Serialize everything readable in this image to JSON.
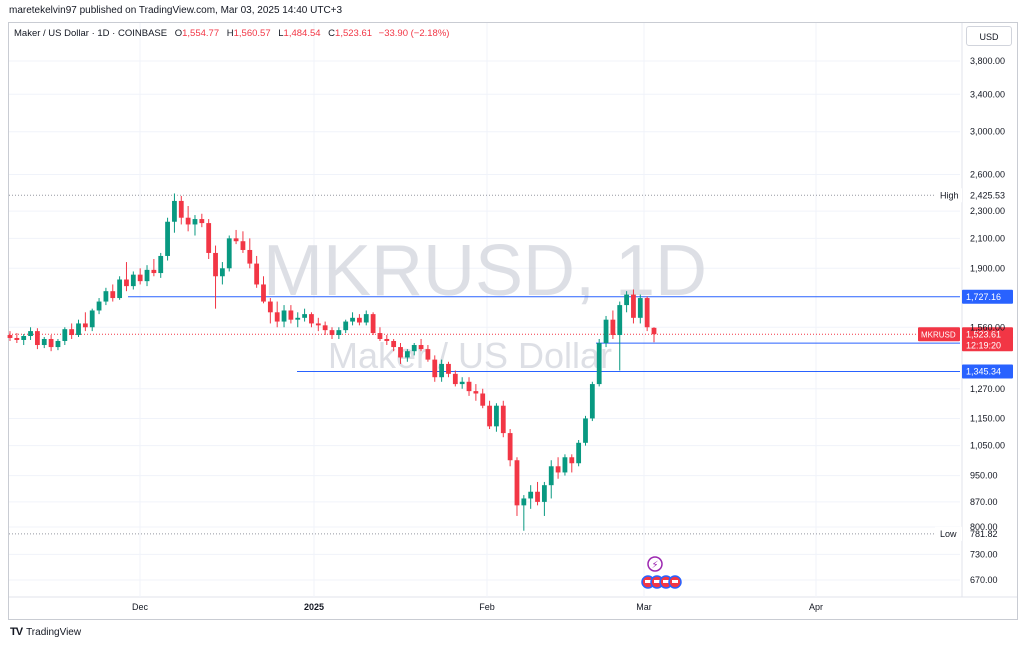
{
  "publisher": "maretekelvin97 published on TradingView.com, Mar 03, 2025 14:40 UTC+3",
  "legend": {
    "symbol": "Maker / US Dollar · 1D · COINBASE",
    "open_label": "O",
    "open": "1,554.77",
    "high_label": "H",
    "high": "1,560.57",
    "low_label": "L",
    "low": "1,484.54",
    "close_label": "C",
    "close": "1,523.61",
    "change": "−33.90 (−2.18%)"
  },
  "currency_button": "USD",
  "watermark": {
    "line1": "MKRUSD, 1D",
    "line2": "Maker / US Dollar"
  },
  "footer_brand": "TradingView",
  "colors": {
    "up": "#089981",
    "down": "#f23645",
    "level_line": "#2962ff",
    "grid": "#f0f3fa",
    "dotted": "#9598a1"
  },
  "chart_data": {
    "type": "candlestick",
    "title": "Maker / US Dollar · 1D · COINBASE",
    "y_scale": "log",
    "y_ticks": [
      670,
      730,
      800,
      870,
      950,
      1050,
      1150,
      1270,
      1560,
      1900,
      2100,
      2300,
      2600,
      3000,
      3400,
      3800
    ],
    "y_tick_labels": [
      "670.00",
      "730.00",
      "800.00",
      "870.00",
      "950.00",
      "1,050.00",
      "1,150.00",
      "1,270.00",
      "1,560.00",
      "1,900.00",
      "2,100.00",
      "2,300.00",
      "2,600.00",
      "3,000.00",
      "3,400.00",
      "3,800.00"
    ],
    "x_labels": [
      "Dec",
      "2025",
      "Feb",
      "Mar",
      "Apr"
    ],
    "ylim": [
      620,
      4300
    ],
    "markers": [
      {
        "label": "High",
        "value": 2425.53,
        "text": "2,425.53"
      },
      {
        "label": "Low",
        "value": 781.82,
        "text": "781.82"
      }
    ],
    "price_label": {
      "symbol": "MKRUSD",
      "value": 1523.61,
      "text": "1,523.61",
      "countdown": "12:19:20"
    },
    "horizontal_levels": [
      {
        "value": 1727.16,
        "text": "1,727.16"
      },
      {
        "value": 1479.48,
        "text": "1,479.48"
      },
      {
        "value": 1345.34,
        "text": "1,345.34"
      }
    ],
    "candles": [
      [
        1520,
        1540,
        1490,
        1505
      ],
      [
        1505,
        1530,
        1480,
        1495
      ],
      [
        1495,
        1525,
        1470,
        1515
      ],
      [
        1515,
        1560,
        1495,
        1540
      ],
      [
        1540,
        1555,
        1450,
        1470
      ],
      [
        1470,
        1510,
        1455,
        1500
      ],
      [
        1500,
        1520,
        1440,
        1460
      ],
      [
        1460,
        1500,
        1445,
        1490
      ],
      [
        1490,
        1560,
        1470,
        1550
      ],
      [
        1550,
        1580,
        1500,
        1520
      ],
      [
        1520,
        1600,
        1510,
        1580
      ],
      [
        1580,
        1640,
        1540,
        1560
      ],
      [
        1560,
        1660,
        1540,
        1650
      ],
      [
        1650,
        1720,
        1630,
        1700
      ],
      [
        1700,
        1780,
        1680,
        1760
      ],
      [
        1760,
        1800,
        1700,
        1720
      ],
      [
        1720,
        1850,
        1710,
        1830
      ],
      [
        1830,
        1940,
        1760,
        1790
      ],
      [
        1790,
        1880,
        1770,
        1860
      ],
      [
        1860,
        1900,
        1800,
        1820
      ],
      [
        1820,
        1920,
        1790,
        1890
      ],
      [
        1890,
        1960,
        1850,
        1870
      ],
      [
        1870,
        2000,
        1840,
        1980
      ],
      [
        1980,
        2250,
        1950,
        2220
      ],
      [
        2220,
        2440,
        2140,
        2380
      ],
      [
        2380,
        2420,
        2200,
        2250
      ],
      [
        2250,
        2340,
        2150,
        2200
      ],
      [
        2200,
        2270,
        2120,
        2240
      ],
      [
        2240,
        2280,
        2180,
        2210
      ],
      [
        2210,
        2240,
        1960,
        2000
      ],
      [
        2000,
        2050,
        1660,
        1850
      ],
      [
        1850,
        1940,
        1800,
        1900
      ],
      [
        1900,
        2120,
        1880,
        2100
      ],
      [
        2100,
        2160,
        2060,
        2080
      ],
      [
        2080,
        2150,
        2000,
        2020
      ],
      [
        2020,
        2100,
        1900,
        1930
      ],
      [
        1930,
        1980,
        1780,
        1800
      ],
      [
        1800,
        1850,
        1690,
        1700
      ],
      [
        1700,
        1720,
        1580,
        1640
      ],
      [
        1640,
        1700,
        1560,
        1590
      ],
      [
        1590,
        1680,
        1560,
        1650
      ],
      [
        1650,
        1680,
        1580,
        1600
      ],
      [
        1600,
        1640,
        1560,
        1610
      ],
      [
        1610,
        1660,
        1590,
        1630
      ],
      [
        1630,
        1640,
        1560,
        1580
      ],
      [
        1580,
        1610,
        1540,
        1570
      ],
      [
        1570,
        1590,
        1520,
        1545
      ],
      [
        1545,
        1560,
        1500,
        1520
      ],
      [
        1520,
        1560,
        1500,
        1545
      ],
      [
        1545,
        1600,
        1530,
        1590
      ],
      [
        1590,
        1640,
        1570,
        1610
      ],
      [
        1610,
        1630,
        1570,
        1585
      ],
      [
        1585,
        1650,
        1570,
        1630
      ],
      [
        1630,
        1640,
        1520,
        1530
      ],
      [
        1530,
        1560,
        1490,
        1500
      ],
      [
        1500,
        1520,
        1470,
        1490
      ],
      [
        1490,
        1500,
        1440,
        1460
      ],
      [
        1460,
        1480,
        1380,
        1410
      ],
      [
        1410,
        1450,
        1390,
        1440
      ],
      [
        1440,
        1480,
        1420,
        1470
      ],
      [
        1470,
        1500,
        1440,
        1450
      ],
      [
        1450,
        1470,
        1390,
        1400
      ],
      [
        1400,
        1420,
        1300,
        1320
      ],
      [
        1320,
        1400,
        1300,
        1380
      ],
      [
        1380,
        1390,
        1320,
        1335
      ],
      [
        1335,
        1350,
        1280,
        1290
      ],
      [
        1290,
        1320,
        1270,
        1300
      ],
      [
        1300,
        1320,
        1240,
        1260
      ],
      [
        1260,
        1290,
        1220,
        1250
      ],
      [
        1250,
        1270,
        1190,
        1200
      ],
      [
        1200,
        1220,
        1110,
        1120
      ],
      [
        1120,
        1210,
        1100,
        1200
      ],
      [
        1200,
        1220,
        1080,
        1095
      ],
      [
        1095,
        1110,
        980,
        1000
      ],
      [
        1000,
        1010,
        830,
        860
      ],
      [
        860,
        890,
        790,
        880
      ],
      [
        880,
        920,
        850,
        900
      ],
      [
        900,
        930,
        860,
        870
      ],
      [
        870,
        930,
        830,
        920
      ],
      [
        920,
        1000,
        880,
        980
      ],
      [
        980,
        1010,
        940,
        960
      ],
      [
        960,
        1020,
        950,
        1010
      ],
      [
        1010,
        1020,
        960,
        990
      ],
      [
        990,
        1070,
        980,
        1060
      ],
      [
        1060,
        1160,
        1050,
        1150
      ],
      [
        1150,
        1300,
        1140,
        1290
      ],
      [
        1290,
        1500,
        1280,
        1480
      ],
      [
        1480,
        1620,
        1460,
        1600
      ],
      [
        1600,
        1650,
        1500,
        1520
      ],
      [
        1520,
        1700,
        1350,
        1680
      ],
      [
        1680,
        1760,
        1640,
        1740
      ],
      [
        1740,
        1770,
        1580,
        1610
      ],
      [
        1610,
        1740,
        1580,
        1720
      ],
      [
        1720,
        1730,
        1540,
        1560
      ],
      [
        1557,
        1560,
        1484,
        1524
      ]
    ]
  }
}
